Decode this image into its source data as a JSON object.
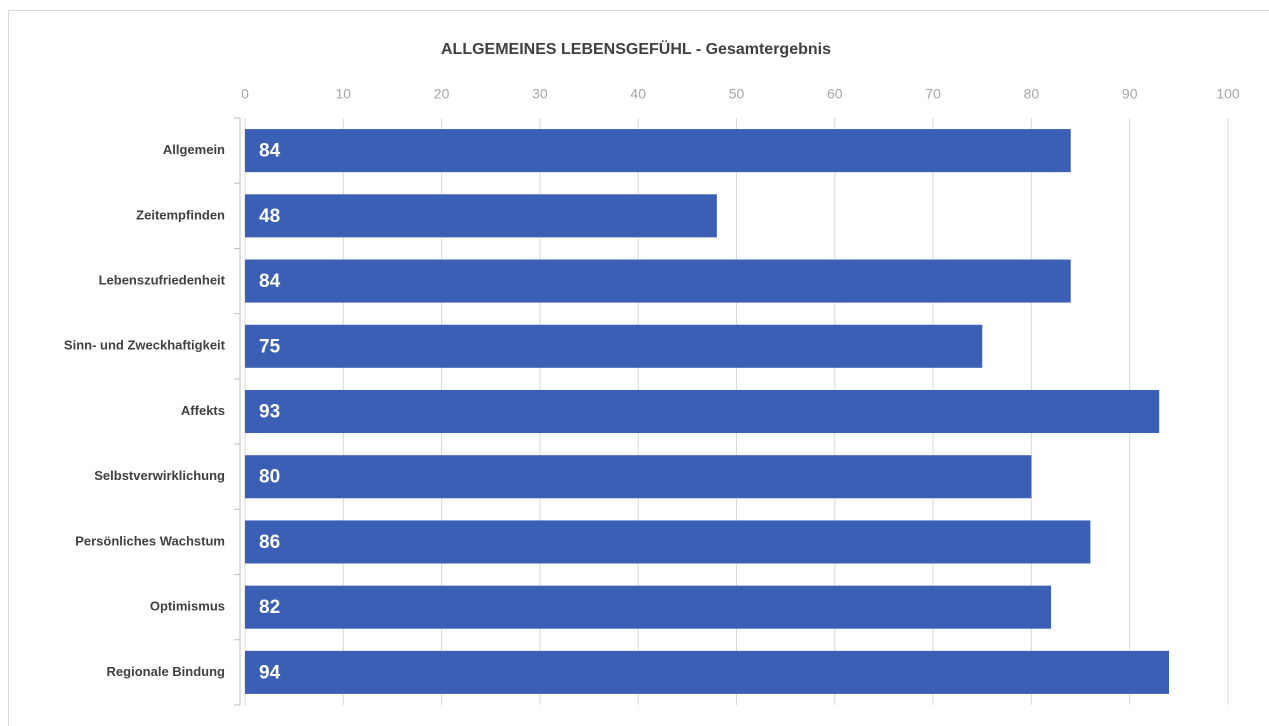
{
  "chart_data": {
    "type": "bar",
    "orientation": "horizontal",
    "title": "ALLGEMEINES LEBENSGEFÜHL - Gesamtergebnis",
    "categories": [
      "Allgemein",
      "Zeitempfinden",
      "Lebenszufriedenheit",
      "Sinn- und Zweckhaftigkeit",
      "Affekts",
      "Selbstverwirklichung",
      "Persönliches Wachstum",
      "Optimismus",
      "Regionale Bindung"
    ],
    "values": [
      84,
      48,
      84,
      75,
      93,
      80,
      86,
      82,
      94
    ],
    "color": "#3a5fb4",
    "xlim": [
      0,
      100
    ],
    "xticks": [
      0,
      10,
      20,
      30,
      40,
      50,
      60,
      70,
      80,
      90,
      100
    ],
    "grid": true
  }
}
